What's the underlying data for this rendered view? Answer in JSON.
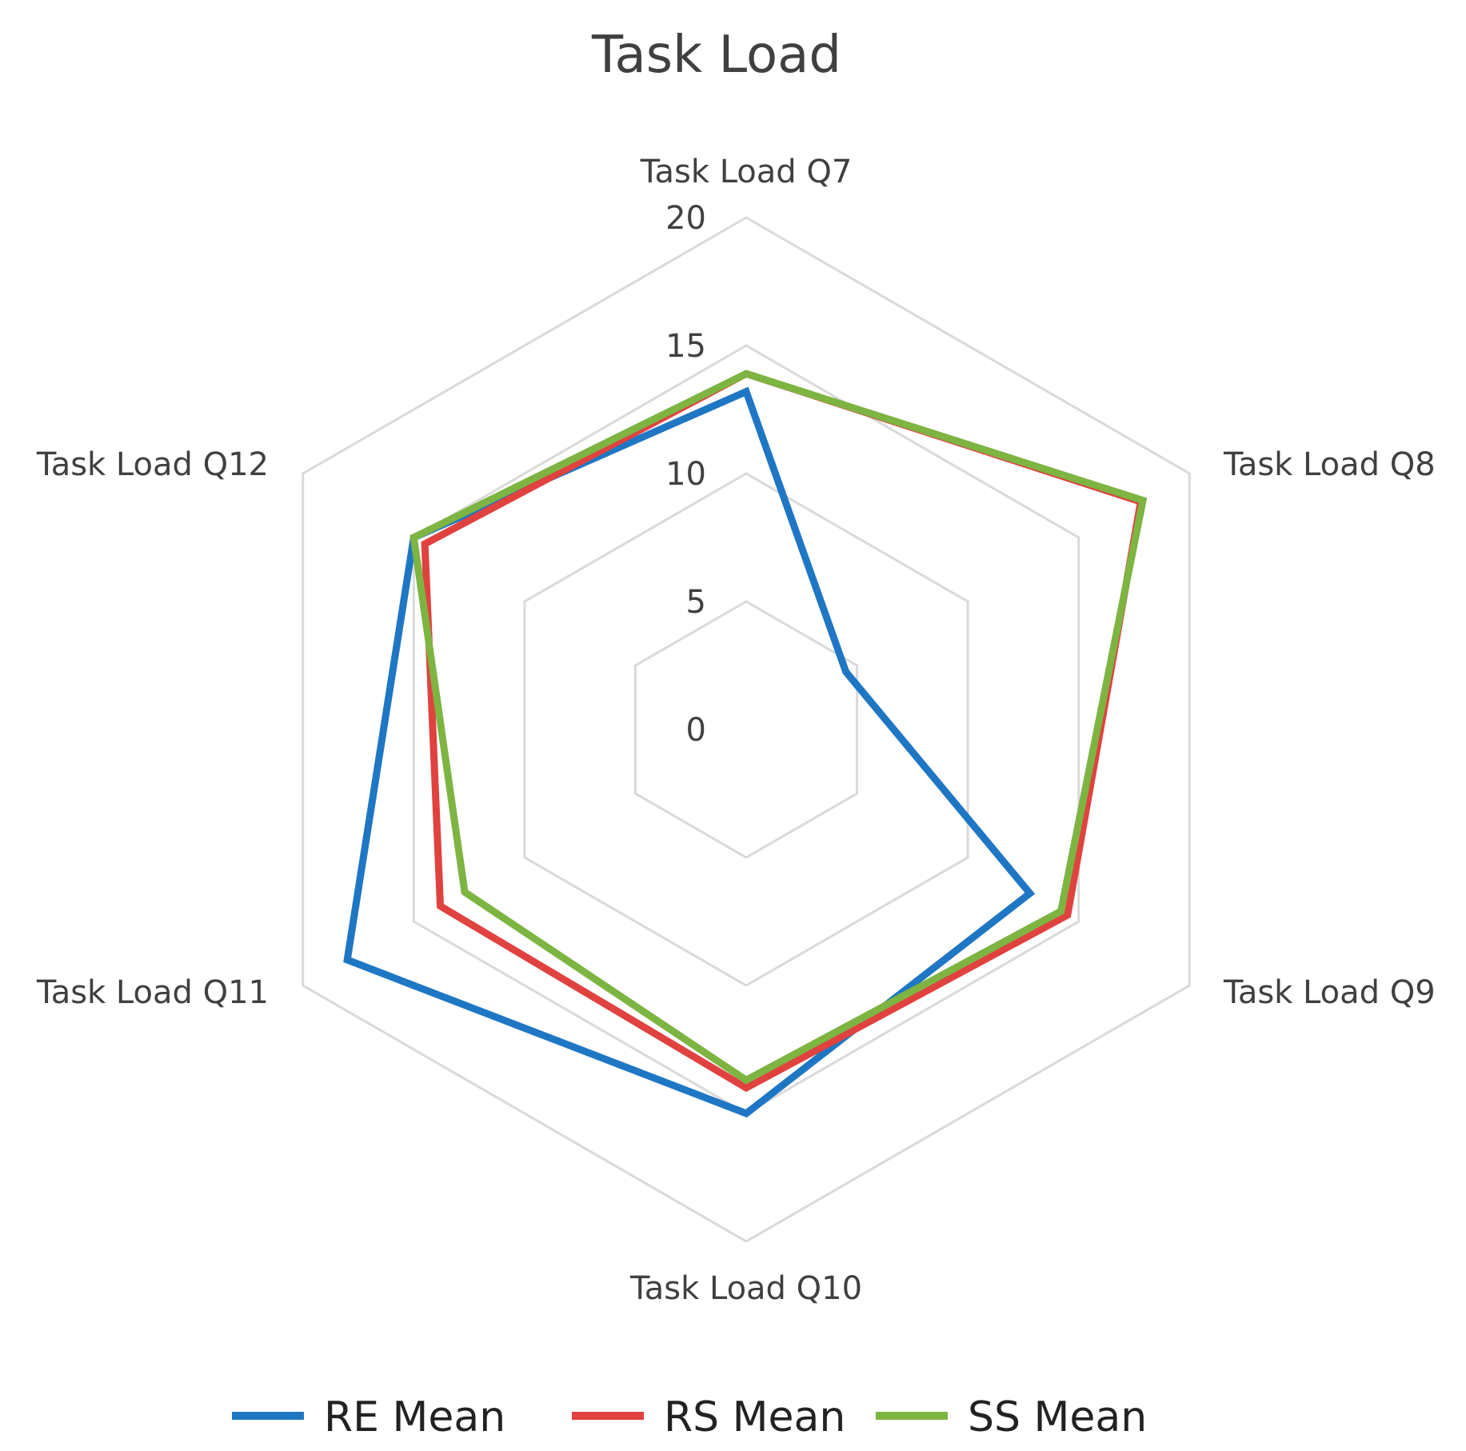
{
  "chart_data": {
    "type": "radar",
    "title": "Task Load",
    "categories": [
      "Task Load Q7",
      "Task Load Q8",
      "Task Load Q9",
      "Task Load Q10",
      "Task Load Q11",
      "Task Load Q12"
    ],
    "ticks": [
      "0",
      "5",
      "10",
      "15",
      "20"
    ],
    "rlim": [
      0,
      20
    ],
    "grid": true,
    "legend_position": "bottom",
    "series": [
      {
        "name": "RE Mean",
        "color": "#1F77C4",
        "values": [
          13.2,
          4.5,
          12.8,
          15.0,
          18.0,
          15.0
        ]
      },
      {
        "name": "RS Mean",
        "color": "#E0423F",
        "values": [
          13.9,
          17.8,
          14.5,
          14.0,
          13.8,
          14.5
        ]
      },
      {
        "name": "SS Mean",
        "color": "#7DB442",
        "values": [
          13.9,
          17.9,
          14.2,
          13.7,
          12.7,
          15.0
        ]
      }
    ]
  }
}
